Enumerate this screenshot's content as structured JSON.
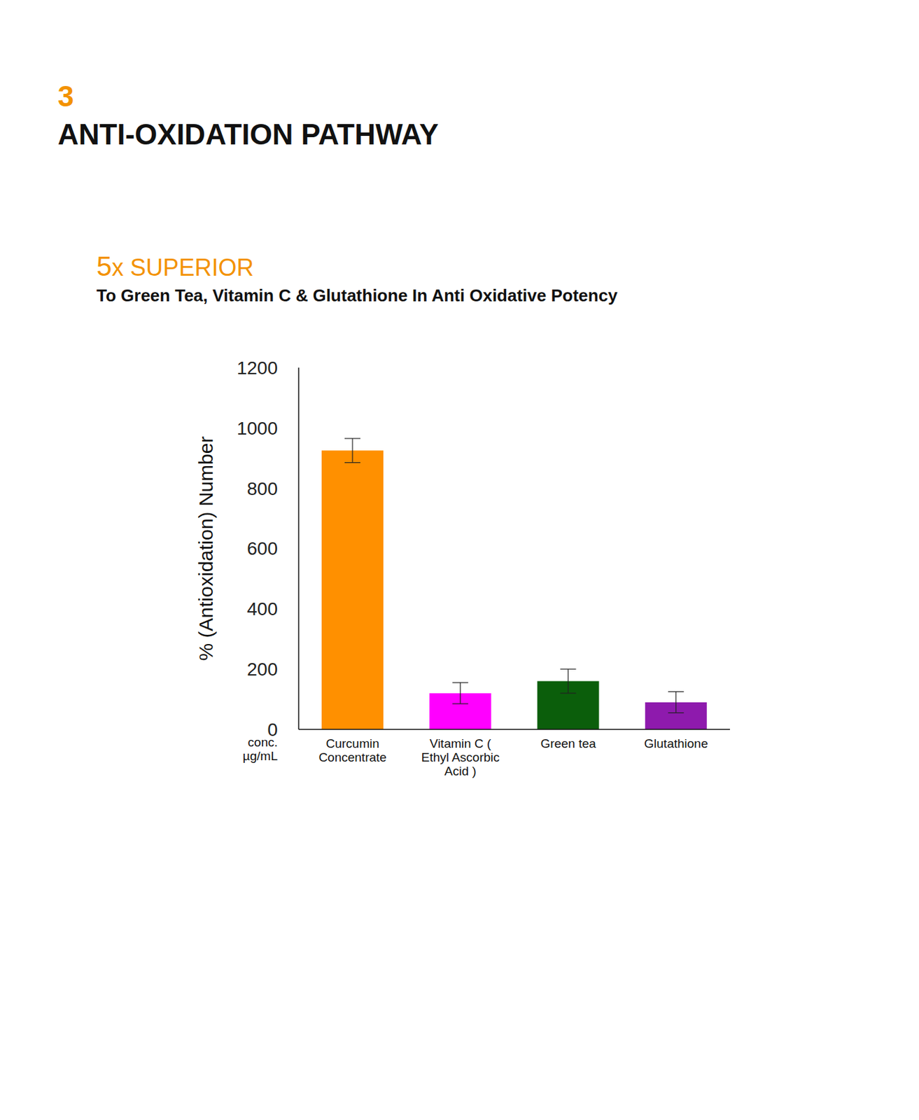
{
  "chart_data": {
    "type": "bar",
    "number": "3",
    "title": "ANTI-OXIDATION PATHWAY",
    "highlight": "5x SUPERIOR",
    "subtitle": "To Green Tea, Vitamin C & Glutathione In Anti Oxidative Potency",
    "xlabel": "conc. µg/mL",
    "ylabel": "% (Antioxidation) Number",
    "categories": [
      "Curcumin Concentrate",
      "Vitamin C ( Ethyl Ascorbic Acid )",
      "Green tea",
      "Glutathione"
    ],
    "values": [
      925,
      120,
      160,
      90
    ],
    "errors": [
      40,
      35,
      40,
      35
    ],
    "colors": [
      "#ff9000",
      "#ff00ff",
      "#0b5e0b",
      "#8e1aad"
    ],
    "ylim": [
      0,
      1200
    ],
    "yticks": [
      0,
      200,
      400,
      600,
      800,
      1000,
      1200
    ],
    "grid": false
  }
}
